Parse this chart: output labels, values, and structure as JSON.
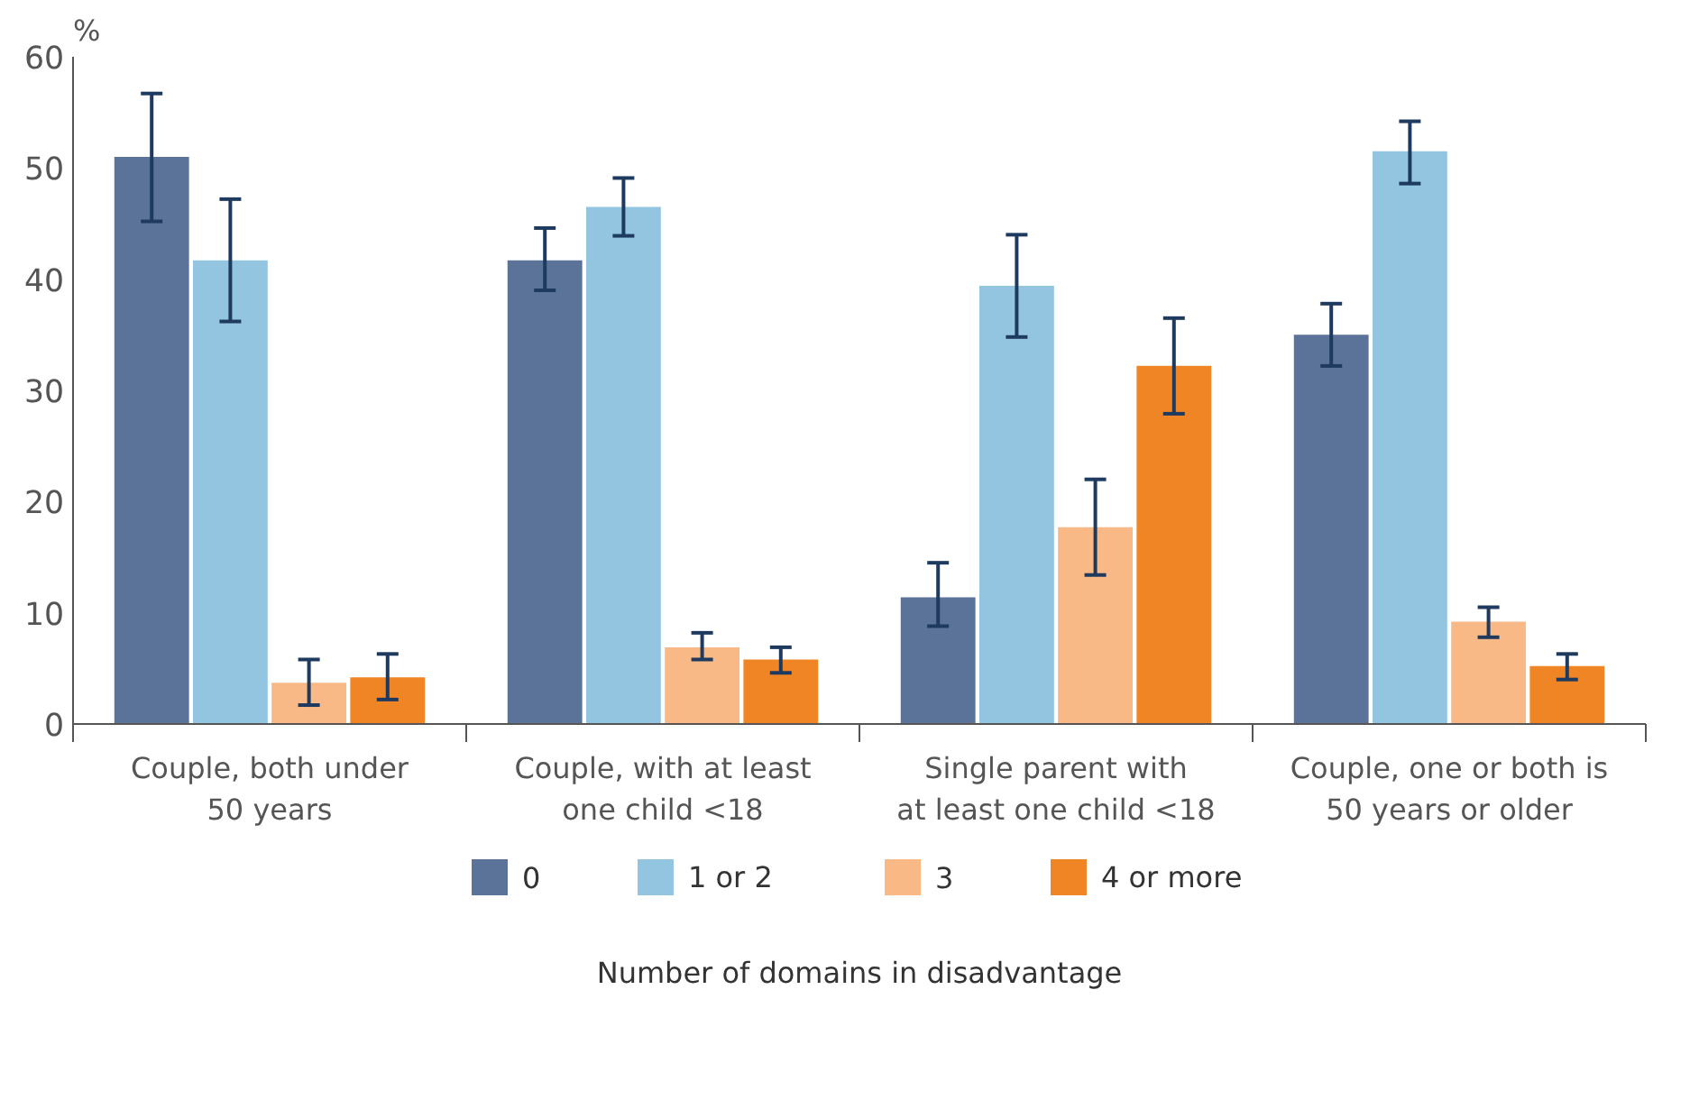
{
  "chart_data": {
    "type": "bar",
    "ylabel": "%",
    "xlabel": "Number of domains in disadvantage",
    "categories": [
      "Couple, both under\n50 years",
      "Couple, with at least\none child <18",
      "Single parent with\nat least one child <18",
      "Couple, one or both is\n50 years or older"
    ],
    "series": [
      {
        "name": "0",
        "color": "#5b7399",
        "values": [
          51,
          41.7,
          11.4,
          35
        ],
        "errors": [
          [
            45.2,
            56.7
          ],
          [
            39,
            44.6
          ],
          [
            8.8,
            14.5
          ],
          [
            32.2,
            37.8
          ]
        ]
      },
      {
        "name": "1 or 2",
        "color": "#93c5e0",
        "values": [
          41.7,
          46.5,
          39.4,
          51.5
        ],
        "errors": [
          [
            36.2,
            47.2
          ],
          [
            43.9,
            49.1
          ],
          [
            34.8,
            44
          ],
          [
            48.6,
            54.2
          ]
        ]
      },
      {
        "name": "3",
        "color": "#f8b986",
        "values": [
          3.7,
          6.9,
          17.7,
          9.2
        ],
        "errors": [
          [
            1.7,
            5.8
          ],
          [
            5.8,
            8.2
          ],
          [
            13.4,
            22
          ],
          [
            7.8,
            10.5
          ]
        ]
      },
      {
        "name": "4 or more",
        "color": "#f08526",
        "values": [
          4.2,
          5.8,
          32.2,
          5.2
        ],
        "errors": [
          [
            2.2,
            6.3
          ],
          [
            4.6,
            6.9
          ],
          [
            27.9,
            36.5
          ],
          [
            4,
            6.3
          ]
        ]
      }
    ],
    "ylim": [
      0,
      60
    ],
    "yticks": [
      0,
      10,
      20,
      30,
      40,
      50,
      60
    ],
    "grid": false,
    "legend": "bottom"
  }
}
